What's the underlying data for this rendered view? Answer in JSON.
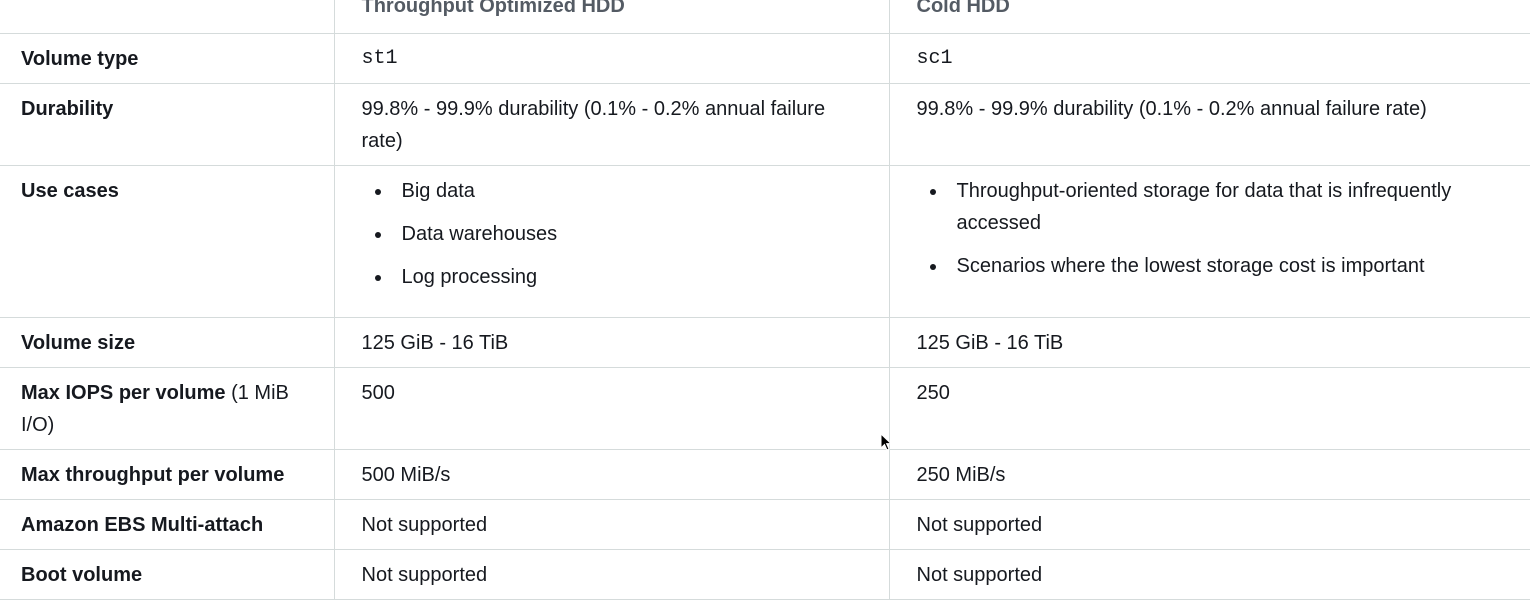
{
  "table": {
    "columns": [
      "",
      "Throughput Optimized HDD",
      "Cold HDD"
    ],
    "rows": {
      "volume_type": {
        "label": "Volume type",
        "st1": "st1",
        "sc1": "sc1"
      },
      "durability": {
        "label": "Durability",
        "st1": "99.8% - 99.9% durability (0.1% - 0.2% annual failure rate)",
        "sc1": "99.8% - 99.9% durability (0.1% - 0.2% annual failure rate)"
      },
      "use_cases": {
        "label": "Use cases",
        "st1": [
          "Big data",
          "Data warehouses",
          "Log processing"
        ],
        "sc1": [
          "Throughput-oriented storage for data that is infrequently accessed",
          "Scenarios where the lowest storage cost is important"
        ]
      },
      "volume_size": {
        "label": "Volume size",
        "st1": "125 GiB - 16 TiB",
        "sc1": "125 GiB - 16 TiB"
      },
      "max_iops": {
        "label_bold": "Max IOPS per volume",
        "label_normal": " (1 MiB I/O)",
        "st1": "500",
        "sc1": "250"
      },
      "max_throughput": {
        "label": "Max throughput per volume",
        "st1": "500 MiB/s",
        "sc1": "250 MiB/s"
      },
      "multi_attach": {
        "label": "Amazon EBS Multi-attach",
        "st1": "Not supported",
        "sc1": "Not supported"
      },
      "boot_volume": {
        "label": "Boot volume",
        "st1": "Not supported",
        "sc1": "Not supported"
      }
    }
  },
  "cursor_icon": "mouse-pointer-icon"
}
